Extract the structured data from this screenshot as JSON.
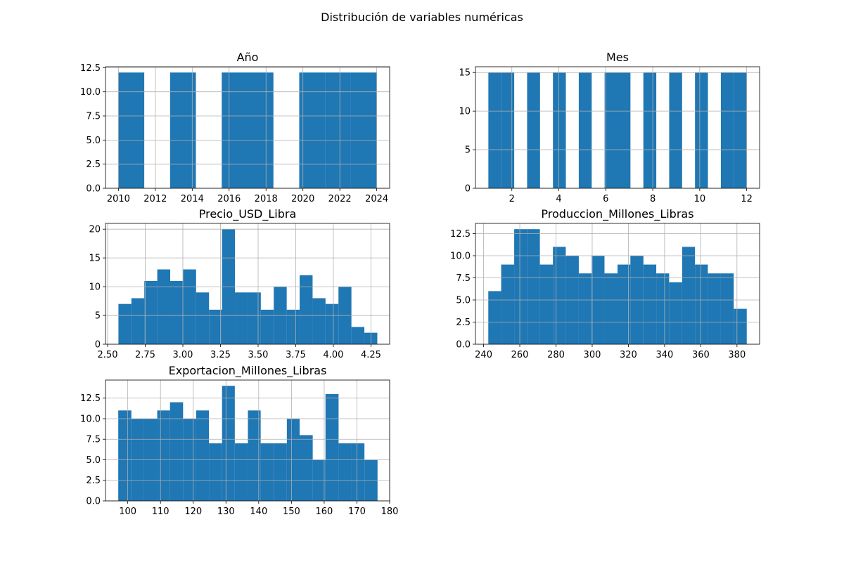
{
  "figure": {
    "suptitle": "Distribución de variables numéricas",
    "bar_color": "#1f77b4",
    "grid_color": "#b0b0b0"
  },
  "chart_data": [
    {
      "type": "bar",
      "title": "Año",
      "xlabel": "",
      "ylabel": "",
      "grid": true,
      "xlim": [
        2009.3,
        2024.7
      ],
      "ylim": [
        0,
        12.6
      ],
      "xticks": [
        2010,
        2012,
        2014,
        2016,
        2018,
        2020,
        2022,
        2024
      ],
      "xtick_labels": [
        "2010",
        "2012",
        "2014",
        "2016",
        "2018",
        "2020",
        "2022",
        "2024"
      ],
      "yticks": [
        0,
        2.5,
        5,
        7.5,
        10,
        12.5
      ],
      "ytick_labels": [
        "0.0",
        "2.5",
        "5.0",
        "7.5",
        "10.0",
        "12.5"
      ],
      "bins": [
        {
          "x0": 2010.0,
          "x1": 2011.4,
          "count": 12
        },
        {
          "x0": 2011.4,
          "x1": 2012.8,
          "count": 0
        },
        {
          "x0": 2012.8,
          "x1": 2014.2,
          "count": 12
        },
        {
          "x0": 2014.2,
          "x1": 2015.6,
          "count": 0
        },
        {
          "x0": 2015.6,
          "x1": 2017.0,
          "count": 12
        },
        {
          "x0": 2017.0,
          "x1": 2018.4,
          "count": 12
        },
        {
          "x0": 2018.4,
          "x1": 2019.8,
          "count": 0
        },
        {
          "x0": 2019.8,
          "x1": 2021.2,
          "count": 12
        },
        {
          "x0": 2021.2,
          "x1": 2022.6,
          "count": 12
        },
        {
          "x0": 2022.6,
          "x1": 2024.0,
          "count": 12
        }
      ]
    },
    {
      "type": "bar",
      "title": "Mes",
      "xlabel": "",
      "ylabel": "",
      "grid": true,
      "xlim": [
        0.45,
        12.55
      ],
      "ylim": [
        0,
        15.75
      ],
      "xticks": [
        2,
        4,
        6,
        8,
        10,
        12
      ],
      "xtick_labels": [
        "2",
        "4",
        "6",
        "8",
        "10",
        "12"
      ],
      "yticks": [
        0,
        5,
        10,
        15
      ],
      "ytick_labels": [
        "0",
        "5",
        "10",
        "15"
      ],
      "bins": [
        {
          "x0": 1.0,
          "x1": 1.55,
          "count": 15
        },
        {
          "x0": 1.55,
          "x1": 2.1,
          "count": 15
        },
        {
          "x0": 2.1,
          "x1": 2.65,
          "count": 0
        },
        {
          "x0": 2.65,
          "x1": 3.2,
          "count": 15
        },
        {
          "x0": 3.2,
          "x1": 3.75,
          "count": 0
        },
        {
          "x0": 3.75,
          "x1": 4.3,
          "count": 15
        },
        {
          "x0": 4.3,
          "x1": 4.85,
          "count": 0
        },
        {
          "x0": 4.85,
          "x1": 5.4,
          "count": 15
        },
        {
          "x0": 5.4,
          "x1": 5.95,
          "count": 0
        },
        {
          "x0": 5.95,
          "x1": 6.5,
          "count": 15
        },
        {
          "x0": 6.5,
          "x1": 7.05,
          "count": 15
        },
        {
          "x0": 7.05,
          "x1": 7.6,
          "count": 0
        },
        {
          "x0": 7.6,
          "x1": 8.15,
          "count": 15
        },
        {
          "x0": 8.15,
          "x1": 8.7,
          "count": 0
        },
        {
          "x0": 8.7,
          "x1": 9.25,
          "count": 15
        },
        {
          "x0": 9.25,
          "x1": 9.8,
          "count": 0
        },
        {
          "x0": 9.8,
          "x1": 10.35,
          "count": 15
        },
        {
          "x0": 10.35,
          "x1": 10.9,
          "count": 0
        },
        {
          "x0": 10.9,
          "x1": 11.45,
          "count": 15
        },
        {
          "x0": 11.45,
          "x1": 12.0,
          "count": 15
        }
      ]
    },
    {
      "type": "bar",
      "title": "Precio_USD_Libra",
      "xlabel": "",
      "ylabel": "",
      "grid": true,
      "xlim": [
        2.486,
        4.374
      ],
      "ylim": [
        0,
        21
      ],
      "xticks": [
        2.5,
        2.75,
        3.0,
        3.25,
        3.5,
        3.75,
        4.0,
        4.25
      ],
      "xtick_labels": [
        "2.50",
        "2.75",
        "3.00",
        "3.25",
        "3.50",
        "3.75",
        "4.00",
        "4.25"
      ],
      "yticks": [
        0,
        5,
        10,
        15,
        20
      ],
      "ytick_labels": [
        "0",
        "5",
        "10",
        "15",
        "20"
      ],
      "bins": [
        {
          "x0": 2.572,
          "x1": 2.658,
          "count": 7
        },
        {
          "x0": 2.658,
          "x1": 2.744,
          "count": 8
        },
        {
          "x0": 2.744,
          "x1": 2.83,
          "count": 11
        },
        {
          "x0": 2.83,
          "x1": 2.916,
          "count": 13
        },
        {
          "x0": 2.916,
          "x1": 3.002,
          "count": 11
        },
        {
          "x0": 3.002,
          "x1": 3.088,
          "count": 13
        },
        {
          "x0": 3.088,
          "x1": 3.174,
          "count": 9
        },
        {
          "x0": 3.174,
          "x1": 3.26,
          "count": 6
        },
        {
          "x0": 3.26,
          "x1": 3.346,
          "count": 20
        },
        {
          "x0": 3.346,
          "x1": 3.432,
          "count": 9
        },
        {
          "x0": 3.432,
          "x1": 3.518,
          "count": 9
        },
        {
          "x0": 3.518,
          "x1": 3.604,
          "count": 6
        },
        {
          "x0": 3.604,
          "x1": 3.69,
          "count": 10
        },
        {
          "x0": 3.69,
          "x1": 3.776,
          "count": 6
        },
        {
          "x0": 3.776,
          "x1": 3.862,
          "count": 12
        },
        {
          "x0": 3.862,
          "x1": 3.948,
          "count": 8
        },
        {
          "x0": 3.948,
          "x1": 4.034,
          "count": 7
        },
        {
          "x0": 4.034,
          "x1": 4.12,
          "count": 10
        },
        {
          "x0": 4.12,
          "x1": 4.206,
          "count": 3
        },
        {
          "x0": 4.206,
          "x1": 4.292,
          "count": 2
        }
      ]
    },
    {
      "type": "bar",
      "title": "Produccion_Millones_Libras",
      "xlabel": "",
      "ylabel": "",
      "grid": true,
      "xlim": [
        235.5,
        392.5
      ],
      "ylim": [
        0,
        13.65
      ],
      "xticks": [
        240,
        260,
        280,
        300,
        320,
        340,
        360,
        380
      ],
      "xtick_labels": [
        "240",
        "260",
        "280",
        "300",
        "320",
        "340",
        "360",
        "380"
      ],
      "yticks": [
        0,
        2.5,
        5,
        7.5,
        10,
        12.5
      ],
      "ytick_labels": [
        "0.0",
        "2.5",
        "5.0",
        "7.5",
        "10.0",
        "12.5"
      ],
      "bins": [
        {
          "x0": 242.6,
          "x1": 249.7,
          "count": 6
        },
        {
          "x0": 249.7,
          "x1": 256.9,
          "count": 9
        },
        {
          "x0": 256.9,
          "x1": 264.0,
          "count": 13
        },
        {
          "x0": 264.0,
          "x1": 271.1,
          "count": 13
        },
        {
          "x0": 271.1,
          "x1": 278.3,
          "count": 9
        },
        {
          "x0": 278.3,
          "x1": 285.4,
          "count": 11
        },
        {
          "x0": 285.4,
          "x1": 292.6,
          "count": 10
        },
        {
          "x0": 292.6,
          "x1": 299.7,
          "count": 8
        },
        {
          "x0": 299.7,
          "x1": 306.8,
          "count": 10
        },
        {
          "x0": 306.8,
          "x1": 314.0,
          "count": 8
        },
        {
          "x0": 314.0,
          "x1": 321.1,
          "count": 9
        },
        {
          "x0": 321.1,
          "x1": 328.3,
          "count": 10
        },
        {
          "x0": 328.3,
          "x1": 335.4,
          "count": 9
        },
        {
          "x0": 335.4,
          "x1": 342.5,
          "count": 8
        },
        {
          "x0": 342.5,
          "x1": 349.7,
          "count": 7
        },
        {
          "x0": 349.7,
          "x1": 356.8,
          "count": 11
        },
        {
          "x0": 356.8,
          "x1": 363.9,
          "count": 9
        },
        {
          "x0": 363.9,
          "x1": 371.1,
          "count": 8
        },
        {
          "x0": 371.1,
          "x1": 378.2,
          "count": 8
        },
        {
          "x0": 378.2,
          "x1": 385.4,
          "count": 4
        }
      ]
    },
    {
      "type": "bar",
      "title": "Exportacion_Millones_Libras",
      "xlabel": "",
      "ylabel": "",
      "grid": true,
      "xlim": [
        93.2,
        180.0
      ],
      "ylim": [
        0,
        14.7
      ],
      "xticks": [
        100,
        110,
        120,
        130,
        140,
        150,
        160,
        170,
        180
      ],
      "xtick_labels": [
        "100",
        "110",
        "120",
        "130",
        "140",
        "150",
        "160",
        "170",
        "180"
      ],
      "yticks": [
        0,
        2.5,
        5,
        7.5,
        10,
        12.5
      ],
      "ytick_labels": [
        "0.0",
        "2.5",
        "5.0",
        "7.5",
        "10.0",
        "12.5"
      ],
      "bins": [
        {
          "x0": 97.1,
          "x1": 101.1,
          "count": 11
        },
        {
          "x0": 101.1,
          "x1": 105.0,
          "count": 10
        },
        {
          "x0": 105.0,
          "x1": 109.0,
          "count": 10
        },
        {
          "x0": 109.0,
          "x1": 112.9,
          "count": 11
        },
        {
          "x0": 112.9,
          "x1": 116.9,
          "count": 12
        },
        {
          "x0": 116.9,
          "x1": 120.9,
          "count": 10
        },
        {
          "x0": 120.9,
          "x1": 124.8,
          "count": 11
        },
        {
          "x0": 124.8,
          "x1": 128.8,
          "count": 7
        },
        {
          "x0": 128.8,
          "x1": 132.7,
          "count": 14
        },
        {
          "x0": 132.7,
          "x1": 136.7,
          "count": 7
        },
        {
          "x0": 136.7,
          "x1": 140.6,
          "count": 11
        },
        {
          "x0": 140.6,
          "x1": 144.6,
          "count": 7
        },
        {
          "x0": 144.6,
          "x1": 148.6,
          "count": 7
        },
        {
          "x0": 148.6,
          "x1": 152.5,
          "count": 10
        },
        {
          "x0": 152.5,
          "x1": 156.5,
          "count": 8
        },
        {
          "x0": 156.5,
          "x1": 160.4,
          "count": 5
        },
        {
          "x0": 160.4,
          "x1": 164.4,
          "count": 13
        },
        {
          "x0": 164.4,
          "x1": 168.3,
          "count": 7
        },
        {
          "x0": 168.3,
          "x1": 172.3,
          "count": 7
        },
        {
          "x0": 172.3,
          "x1": 176.3,
          "count": 5
        }
      ]
    }
  ]
}
